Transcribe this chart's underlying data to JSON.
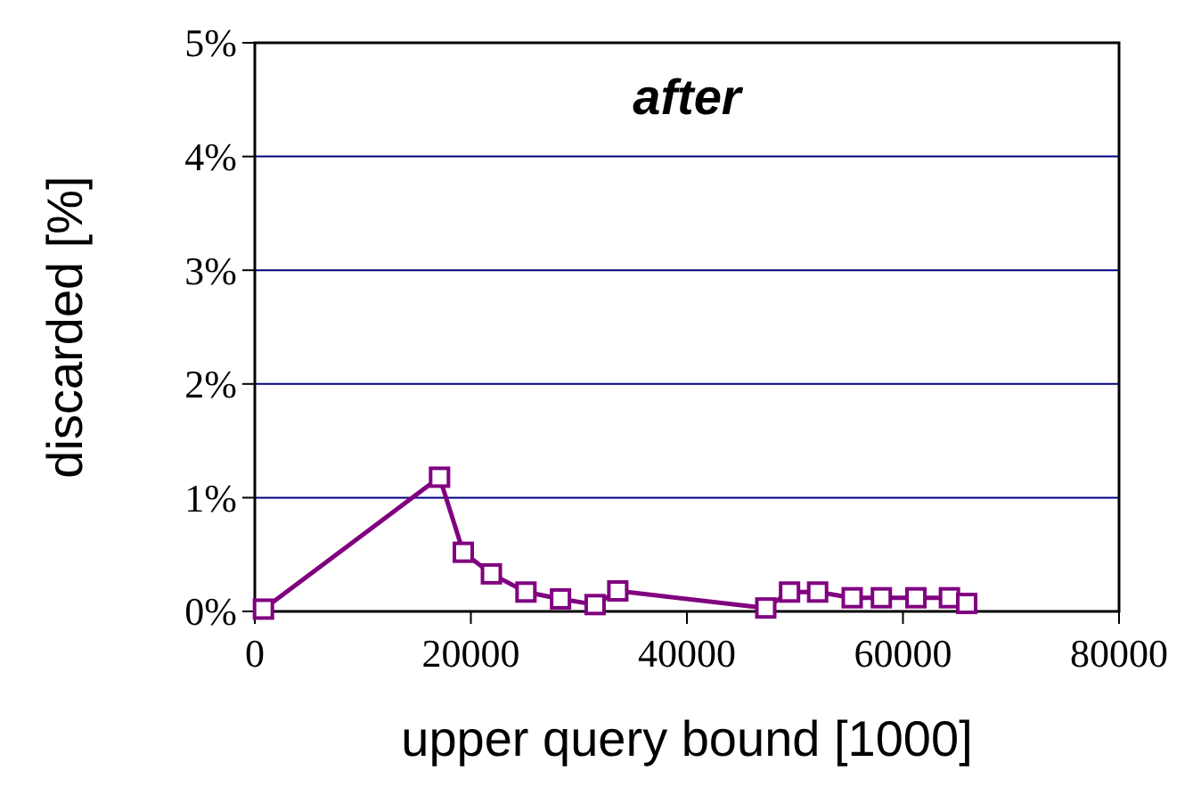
{
  "chart_data": {
    "type": "line",
    "title": "after",
    "xlabel": "upper query bound [1000]",
    "ylabel": "discarded [%]",
    "x": [
      800,
      17100,
      19300,
      21900,
      25100,
      28300,
      31500,
      33600,
      47300,
      49500,
      52100,
      55300,
      58000,
      61200,
      64300,
      65900
    ],
    "series": [
      {
        "color": "#800080",
        "values": [
          0.02,
          1.18,
          0.52,
          0.33,
          0.17,
          0.11,
          0.06,
          0.18,
          0.03,
          0.17,
          0.17,
          0.12,
          0.12,
          0.12,
          0.12,
          0.07
        ]
      }
    ],
    "xlim": [
      0,
      80000
    ],
    "xticks": [
      0,
      20000,
      40000,
      60000,
      80000
    ],
    "ylim": [
      0,
      5
    ],
    "yticks": [
      {
        "value": 0,
        "label": "0%"
      },
      {
        "value": 1,
        "label": "1%"
      },
      {
        "value": 2,
        "label": "2%"
      },
      {
        "value": 3,
        "label": "3%"
      },
      {
        "value": 4,
        "label": "4%"
      },
      {
        "value": 5,
        "label": "5%"
      }
    ],
    "grid": "y",
    "marker": "square",
    "line_style": "solid"
  }
}
